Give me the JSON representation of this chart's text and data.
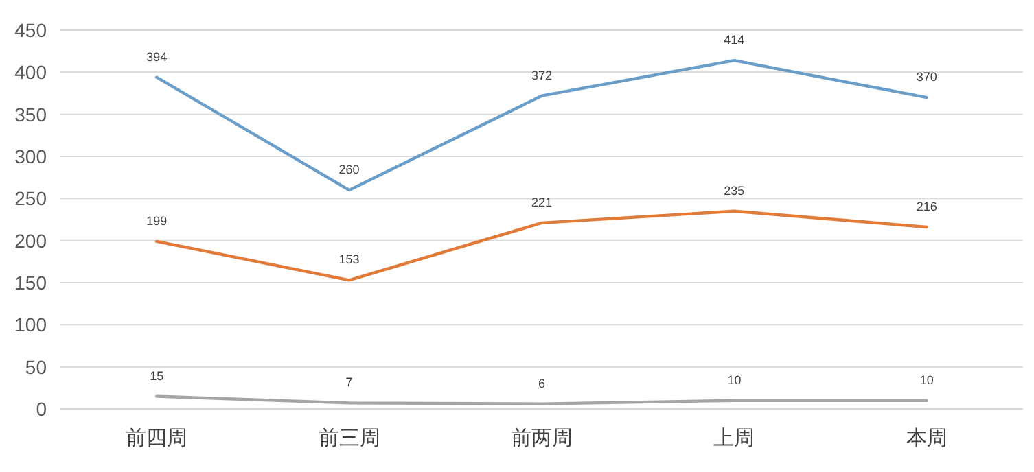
{
  "chart_data": {
    "type": "line",
    "categories": [
      "前四周",
      "前三周",
      "前两周",
      "上周",
      "本周"
    ],
    "series": [
      {
        "color": "#6a9ec8",
        "values": [
          394,
          260,
          372,
          414,
          370
        ]
      },
      {
        "color": "#e07b39",
        "values": [
          199,
          153,
          221,
          235,
          216
        ]
      },
      {
        "color": "#a5a5a5",
        "values": [
          15,
          7,
          6,
          10,
          10
        ]
      }
    ],
    "ylim": [
      0,
      450
    ],
    "yticks": [
      0,
      50,
      100,
      150,
      200,
      250,
      300,
      350,
      400,
      450
    ],
    "grid": "y",
    "data_labels": true,
    "marker": "none",
    "line_style": "solid"
  }
}
